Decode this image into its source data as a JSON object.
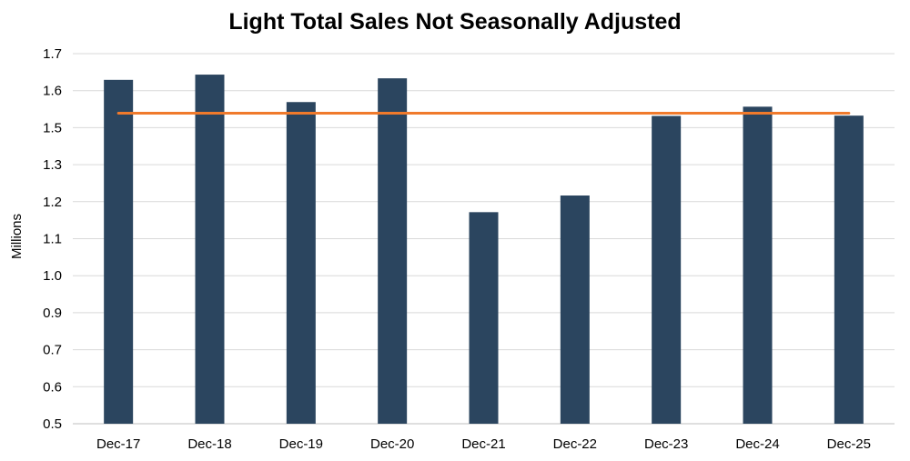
{
  "chart_data": {
    "type": "bar",
    "title": "Light Total Sales Not Seasonally Adjusted",
    "ylabel": "Millions",
    "xlabel": "",
    "categories": [
      "Dec-17",
      "Dec-18",
      "Dec-19",
      "Dec-20",
      "Dec-21",
      "Dec-22",
      "Dec-23",
      "Dec-24",
      "Dec-25"
    ],
    "y_tick_labels": [
      "1.7",
      "1.6",
      "1.5",
      "1.3",
      "1.2",
      "1.1",
      "1.0",
      "0.9",
      "0.7",
      "0.6",
      "0.5"
    ],
    "series": [
      {
        "type": "bar",
        "color": "#2b455f",
        "values": [
          1.615,
          1.632,
          1.543,
          1.62,
          1.186,
          1.24,
          1.498,
          1.528,
          1.499
        ]
      },
      {
        "type": "line",
        "color": "#f07a2c",
        "values": [
          1.507,
          1.507,
          1.507,
          1.507,
          1.507,
          1.507,
          1.507,
          1.507,
          1.507
        ]
      }
    ],
    "ylim": [
      0.5,
      1.7
    ],
    "grid": true,
    "legend": "none"
  }
}
